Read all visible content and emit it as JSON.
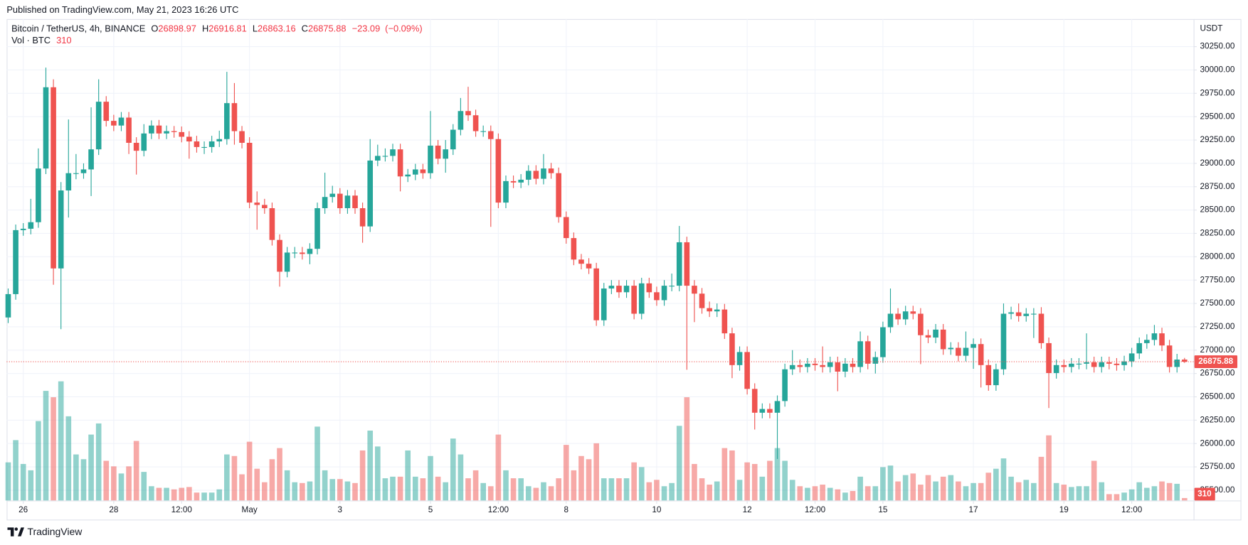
{
  "header": {
    "published": "Published on TradingView.com, May 21, 2023 16:26 UTC"
  },
  "footer": {
    "brand": "TradingView"
  },
  "chart_data": {
    "type": "candlestick",
    "title": "Bitcoin / TetherUS, 4h, BINANCE",
    "ohlc_labels": [
      "O",
      "H",
      "L",
      "C"
    ],
    "change": {
      "value": -23.09,
      "label": "−23.09"
    },
    "change_percent": {
      "value": -0.09,
      "label": "(−0.09%)"
    },
    "volume_label": "Vol · BTC",
    "currency": "USDT",
    "up_color": "#26a69a",
    "down_color": "#ef5350",
    "grid": true,
    "x": [
      "2023-04-25T16:00Z",
      "2023-04-25T20:00Z",
      "2023-04-26T00:00Z",
      "2023-04-26T04:00Z",
      "2023-04-26T08:00Z",
      "2023-04-26T12:00Z",
      "2023-04-26T16:00Z",
      "2023-04-26T20:00Z",
      "2023-04-27T00:00Z",
      "2023-04-27T04:00Z",
      "2023-04-27T08:00Z",
      "2023-04-27T12:00Z",
      "2023-04-27T16:00Z",
      "2023-04-27T20:00Z",
      "2023-04-28T00:00Z",
      "2023-04-28T04:00Z",
      "2023-04-28T08:00Z",
      "2023-04-28T12:00Z",
      "2023-04-28T16:00Z",
      "2023-04-28T20:00Z",
      "2023-04-29T00:00Z",
      "2023-04-29T04:00Z",
      "2023-04-29T08:00Z",
      "2023-04-29T12:00Z",
      "2023-04-29T16:00Z",
      "2023-04-29T20:00Z",
      "2023-04-30T00:00Z",
      "2023-04-30T04:00Z",
      "2023-04-30T08:00Z",
      "2023-04-30T12:00Z",
      "2023-04-30T16:00Z",
      "2023-04-30T20:00Z",
      "2023-05-01T00:00Z",
      "2023-05-01T04:00Z",
      "2023-05-01T08:00Z",
      "2023-05-01T12:00Z",
      "2023-05-01T16:00Z",
      "2023-05-01T20:00Z",
      "2023-05-02T00:00Z",
      "2023-05-02T04:00Z",
      "2023-05-02T08:00Z",
      "2023-05-02T12:00Z",
      "2023-05-02T16:00Z",
      "2023-05-02T20:00Z",
      "2023-05-03T00:00Z",
      "2023-05-03T04:00Z",
      "2023-05-03T08:00Z",
      "2023-05-03T12:00Z",
      "2023-05-03T16:00Z",
      "2023-05-03T20:00Z",
      "2023-05-04T00:00Z",
      "2023-05-04T04:00Z",
      "2023-05-04T08:00Z",
      "2023-05-04T12:00Z",
      "2023-05-04T16:00Z",
      "2023-05-04T20:00Z",
      "2023-05-05T00:00Z",
      "2023-05-05T04:00Z",
      "2023-05-05T08:00Z",
      "2023-05-05T12:00Z",
      "2023-05-05T16:00Z",
      "2023-05-05T20:00Z",
      "2023-05-06T00:00Z",
      "2023-05-06T04:00Z",
      "2023-05-06T08:00Z",
      "2023-05-06T12:00Z",
      "2023-05-06T16:00Z",
      "2023-05-06T20:00Z",
      "2023-05-07T00:00Z",
      "2023-05-07T04:00Z",
      "2023-05-07T08:00Z",
      "2023-05-07T12:00Z",
      "2023-05-07T16:00Z",
      "2023-05-07T20:00Z",
      "2023-05-08T00:00Z",
      "2023-05-08T04:00Z",
      "2023-05-08T08:00Z",
      "2023-05-08T12:00Z",
      "2023-05-08T16:00Z",
      "2023-05-08T20:00Z",
      "2023-05-09T00:00Z",
      "2023-05-09T04:00Z",
      "2023-05-09T08:00Z",
      "2023-05-09T12:00Z",
      "2023-05-09T16:00Z",
      "2023-05-09T20:00Z",
      "2023-05-10T00:00Z",
      "2023-05-10T04:00Z",
      "2023-05-10T08:00Z",
      "2023-05-10T12:00Z",
      "2023-05-10T16:00Z",
      "2023-05-10T20:00Z",
      "2023-05-11T00:00Z",
      "2023-05-11T04:00Z",
      "2023-05-11T08:00Z",
      "2023-05-11T12:00Z",
      "2023-05-11T16:00Z",
      "2023-05-11T20:00Z",
      "2023-05-12T00:00Z",
      "2023-05-12T04:00Z",
      "2023-05-12T08:00Z",
      "2023-05-12T12:00Z",
      "2023-05-12T16:00Z",
      "2023-05-12T20:00Z",
      "2023-05-13T00:00Z",
      "2023-05-13T04:00Z",
      "2023-05-13T08:00Z",
      "2023-05-13T12:00Z",
      "2023-05-13T16:00Z",
      "2023-05-13T20:00Z",
      "2023-05-14T00:00Z",
      "2023-05-14T04:00Z",
      "2023-05-14T08:00Z",
      "2023-05-14T12:00Z",
      "2023-05-14T16:00Z",
      "2023-05-14T20:00Z",
      "2023-05-15T00:00Z",
      "2023-05-15T04:00Z",
      "2023-05-15T08:00Z",
      "2023-05-15T12:00Z",
      "2023-05-15T16:00Z",
      "2023-05-15T20:00Z",
      "2023-05-16T00:00Z",
      "2023-05-16T04:00Z",
      "2023-05-16T08:00Z",
      "2023-05-16T12:00Z",
      "2023-05-16T16:00Z",
      "2023-05-16T20:00Z",
      "2023-05-17T00:00Z",
      "2023-05-17T04:00Z",
      "2023-05-17T08:00Z",
      "2023-05-17T12:00Z",
      "2023-05-17T16:00Z",
      "2023-05-17T20:00Z",
      "2023-05-18T00:00Z",
      "2023-05-18T04:00Z",
      "2023-05-18T08:00Z",
      "2023-05-18T12:00Z",
      "2023-05-18T16:00Z",
      "2023-05-18T20:00Z",
      "2023-05-19T00:00Z",
      "2023-05-19T04:00Z",
      "2023-05-19T08:00Z",
      "2023-05-19T12:00Z",
      "2023-05-19T16:00Z",
      "2023-05-19T20:00Z",
      "2023-05-20T00:00Z",
      "2023-05-20T04:00Z",
      "2023-05-20T08:00Z",
      "2023-05-20T12:00Z",
      "2023-05-20T16:00Z",
      "2023-05-20T20:00Z",
      "2023-05-21T00:00Z",
      "2023-05-21T04:00Z",
      "2023-05-21T08:00Z",
      "2023-05-21T12:00Z",
      "2023-05-21T16:00Z"
    ],
    "open": [
      27350,
      27600,
      28285,
      28300,
      28370,
      28945,
      29815,
      27875,
      28710,
      28895,
      28895,
      28935,
      29150,
      29660,
      29455,
      29405,
      29490,
      29220,
      29135,
      29320,
      29405,
      29320,
      29345,
      29335,
      29285,
      29235,
      29175,
      29175,
      29235,
      29260,
      29645,
      29345,
      29220,
      28580,
      28555,
      28520,
      28180,
      27840,
      28045,
      28045,
      28030,
      28085,
      28520,
      28640,
      28675,
      28520,
      28655,
      28520,
      28325,
      29030,
      29080,
      29080,
      29150,
      28860,
      28880,
      28935,
      28895,
      29190,
      29050,
      29150,
      29360,
      29560,
      29515,
      29345,
      29345,
      29260,
      28580,
      28810,
      28795,
      28825,
      28920,
      28835,
      28945,
      28895,
      28425,
      28200,
      27970,
      27925,
      27875,
      27320,
      27660,
      27690,
      27620,
      27690,
      27390,
      27715,
      27620,
      27535,
      27690,
      27690,
      28155,
      27690,
      27605,
      27450,
      27415,
      27435,
      27180,
      26840,
      26980,
      26585,
      26330,
      26370,
      26330,
      26455,
      26795,
      26840,
      26820,
      26855,
      26840,
      26820,
      26870,
      26770,
      26855,
      26820,
      27095,
      26855,
      26925,
      27245,
      27390,
      27330,
      27415,
      27390,
      27160,
      27135,
      27220,
      27010,
      27025,
      26940,
      27025,
      27065,
      26840,
      26625,
      26795,
      27390,
      27405,
      27365,
      27390,
      27390,
      27075,
      26755,
      26840,
      26820,
      26855,
      26855,
      26870,
      26820,
      26870,
      26855,
      26840,
      26880,
      26965,
      27075,
      27110,
      27180,
      27050,
      26820,
      26898.97
    ],
    "high": [
      27660,
      28345,
      28360,
      28620,
      29160,
      30025,
      29900,
      28800,
      29470,
      29100,
      29000,
      29600,
      29900,
      29720,
      29520,
      29550,
      29550,
      29280,
      29420,
      29460,
      29465,
      29405,
      29400,
      29395,
      29345,
      29295,
      29235,
      29295,
      29350,
      29980,
      29860,
      29400,
      29280,
      28700,
      28620,
      28580,
      28240,
      28105,
      28105,
      28105,
      28145,
      28580,
      28900,
      28760,
      28735,
      28715,
      28715,
      28580,
      29260,
      29200,
      29160,
      29210,
      29210,
      28940,
      28995,
      28995,
      29560,
      29250,
      29250,
      29420,
      29700,
      29820,
      29575,
      29405,
      29405,
      29320,
      28870,
      28870,
      28885,
      28980,
      28980,
      29100,
      29005,
      28955,
      28485,
      28260,
      28030,
      27985,
      27935,
      27720,
      27750,
      27750,
      27750,
      27750,
      27775,
      27775,
      27680,
      27750,
      27820,
      28330,
      28215,
      27750,
      27665,
      27520,
      27500,
      27495,
      27240,
      27040,
      27040,
      26645,
      26430,
      26430,
      26515,
      26855,
      27000,
      26900,
      26915,
      26915,
      27040,
      26930,
      26930,
      26915,
      26915,
      27200,
      27155,
      26985,
      27305,
      27660,
      27450,
      27475,
      27475,
      27450,
      27220,
      27280,
      27280,
      27085,
      27085,
      27200,
      27125,
      27125,
      26900,
      26855,
      27500,
      27465,
      27500,
      27450,
      27450,
      27460,
      27135,
      26900,
      26900,
      26915,
      26915,
      27180,
      26930,
      26930,
      26930,
      26915,
      26940,
      27025,
      27135,
      27170,
      27270,
      27240,
      27110,
      26960,
      26916.81
    ],
    "low": [
      27290,
      27540,
      28225,
      28240,
      28310,
      28885,
      27700,
      27225,
      28420,
      28830,
      28835,
      28650,
      29090,
      29395,
      29345,
      29345,
      29100,
      28880,
      29075,
      29260,
      29260,
      29260,
      29275,
      29225,
      29050,
      29115,
      29100,
      29115,
      29175,
      29200,
      29200,
      29160,
      28520,
      28290,
      28460,
      28120,
      27680,
      27780,
      27985,
      27970,
      27920,
      28025,
      28460,
      28580,
      28460,
      28460,
      28460,
      28150,
      28265,
      28970,
      29020,
      29020,
      28700,
      28800,
      28820,
      28835,
      28835,
      28990,
      28900,
      29090,
      29300,
      29455,
      29285,
      29285,
      28320,
      28520,
      28520,
      28735,
      28735,
      28765,
      28775,
      28775,
      28835,
      28365,
      28140,
      27910,
      27865,
      27815,
      27260,
      27260,
      27600,
      27560,
      27560,
      27330,
      27330,
      27560,
      27475,
      27475,
      27630,
      27630,
      26790,
      27300,
      27390,
      27355,
      27355,
      27120,
      26700,
      26780,
      26525,
      26150,
      26270,
      26270,
      25835,
      26395,
      26735,
      26760,
      26760,
      26780,
      26760,
      26760,
      26560,
      26710,
      26760,
      26760,
      26795,
      26750,
      26865,
      27185,
      27270,
      27270,
      27330,
      26850,
      27075,
      27075,
      26950,
      26950,
      26880,
      26880,
      26800,
      26600,
      26565,
      26565,
      26735,
      27330,
      27305,
      27305,
      27130,
      27015,
      26380,
      26695,
      26760,
      26760,
      26795,
      26795,
      26760,
      26760,
      26795,
      26780,
      26780,
      26820,
      26905,
      27015,
      27050,
      26990,
      26760,
      26760,
      26863.16
    ],
    "close": [
      27600,
      28285,
      28300,
      28370,
      28945,
      29815,
      27875,
      28710,
      28895,
      28895,
      28935,
      29150,
      29660,
      29455,
      29405,
      29490,
      29220,
      29135,
      29320,
      29405,
      29320,
      29345,
      29335,
      29285,
      29235,
      29175,
      29175,
      29235,
      29260,
      29645,
      29345,
      29220,
      28580,
      28555,
      28520,
      28180,
      27840,
      28045,
      28045,
      28030,
      28085,
      28520,
      28640,
      28675,
      28520,
      28655,
      28520,
      28325,
      29030,
      29080,
      29080,
      29150,
      28860,
      28880,
      28935,
      28895,
      29190,
      29050,
      29150,
      29360,
      29560,
      29515,
      29345,
      29345,
      29260,
      28580,
      28810,
      28795,
      28825,
      28920,
      28835,
      28945,
      28895,
      28425,
      28200,
      27970,
      27925,
      27875,
      27320,
      27660,
      27690,
      27620,
      27690,
      27390,
      27715,
      27620,
      27535,
      27690,
      27690,
      28155,
      27690,
      27605,
      27450,
      27415,
      27435,
      27180,
      26840,
      26980,
      26585,
      26330,
      26370,
      26330,
      26455,
      26795,
      26840,
      26820,
      26855,
      26840,
      26820,
      26870,
      26770,
      26855,
      26820,
      27095,
      26855,
      26925,
      27245,
      27390,
      27330,
      27415,
      27390,
      27160,
      27135,
      27220,
      27010,
      27025,
      26940,
      27025,
      27065,
      26840,
      26625,
      26795,
      27390,
      27405,
      27365,
      27390,
      27390,
      27075,
      26755,
      26840,
      26820,
      26855,
      26855,
      26870,
      26820,
      26870,
      26855,
      26840,
      26880,
      26965,
      27075,
      27110,
      27180,
      27050,
      26820,
      26898.97,
      26875.88
    ],
    "volume": [
      4800,
      7600,
      4600,
      3800,
      10000,
      13800,
      13000,
      15000,
      10600,
      5800,
      5200,
      8300,
      9700,
      5000,
      4300,
      3400,
      4300,
      7500,
      3600,
      1800,
      1600,
      1600,
      1400,
      1600,
      1700,
      1000,
      1000,
      1000,
      1400,
      5800,
      5600,
      3300,
      7400,
      4000,
      2300,
      5200,
      6600,
      3800,
      2300,
      2200,
      2400,
      9300,
      3800,
      2700,
      2700,
      2400,
      2200,
      6300,
      8800,
      6800,
      2800,
      3000,
      3000,
      6300,
      3000,
      2800,
      5600,
      3000,
      2300,
      7800,
      5800,
      2800,
      3800,
      2200,
      1800,
      8300,
      3800,
      2800,
      2800,
      1800,
      1600,
      2300,
      1800,
      2800,
      7000,
      3800,
      5600,
      5200,
      7200,
      2800,
      2800,
      2800,
      2800,
      4800,
      4200,
      2300,
      2600,
      1800,
      2200,
      9400,
      13000,
      4600,
      2800,
      2000,
      2400,
      6600,
      6300,
      2600,
      4800,
      4600,
      3000,
      5000,
      6600,
      5000,
      2600,
      1800,
      1600,
      1800,
      2000,
      1600,
      1400,
      1000,
      1200,
      3000,
      1800,
      1800,
      4200,
      4400,
      2400,
      3200,
      3400,
      2000,
      3200,
      2400,
      3000,
      3200,
      2400,
      1800,
      2200,
      2200,
      3500,
      4000,
      5300,
      3000,
      2300,
      2600,
      2200,
      5500,
      8200,
      2200,
      2000,
      1700,
      1800,
      1800,
      5000,
      2300,
      800,
      800,
      1000,
      1400,
      2300,
      1600,
      1800,
      2400,
      2200,
      2100,
      310
    ],
    "xlim": [
      "2023-04-25T15:12Z",
      "2023-05-21T20:48Z"
    ],
    "xticks": [
      {
        "value": "2023-04-26T00:00Z",
        "label": "26"
      },
      {
        "value": "2023-04-28T00:00Z",
        "label": "28"
      },
      {
        "value": "2023-04-29T12:00Z",
        "label": "12:00"
      },
      {
        "value": "2023-05-01T00:00Z",
        "label": "May"
      },
      {
        "value": "2023-05-03T00:00Z",
        "label": "3"
      },
      {
        "value": "2023-05-05T00:00Z",
        "label": "5"
      },
      {
        "value": "2023-05-06T12:00Z",
        "label": "12:00"
      },
      {
        "value": "2023-05-08T00:00Z",
        "label": "8"
      },
      {
        "value": "2023-05-10T00:00Z",
        "label": "10"
      },
      {
        "value": "2023-05-12T00:00Z",
        "label": "12"
      },
      {
        "value": "2023-05-13T12:00Z",
        "label": "12:00"
      },
      {
        "value": "2023-05-15T00:00Z",
        "label": "15"
      },
      {
        "value": "2023-05-17T00:00Z",
        "label": "17"
      },
      {
        "value": "2023-05-19T00:00Z",
        "label": "19"
      },
      {
        "value": "2023-05-20T12:00Z",
        "label": "12:00"
      }
    ],
    "ylim": [
      25390,
      30545
    ],
    "yticks": [
      {
        "value": 25500,
        "label": "25500.00"
      },
      {
        "value": 25750,
        "label": "25750.00"
      },
      {
        "value": 26000,
        "label": "26000.00"
      },
      {
        "value": 26250,
        "label": "26250.00"
      },
      {
        "value": 26500,
        "label": "26500.00"
      },
      {
        "value": 26750,
        "label": "26750.00"
      },
      {
        "value": 27000,
        "label": "27000.00"
      },
      {
        "value": 27250,
        "label": "27250.00"
      },
      {
        "value": 27500,
        "label": "27500.00"
      },
      {
        "value": 27750,
        "label": "27750.00"
      },
      {
        "value": 28000,
        "label": "28000.00"
      },
      {
        "value": 28250,
        "label": "28250.00"
      },
      {
        "value": 28500,
        "label": "28500.00"
      },
      {
        "value": 28750,
        "label": "28750.00"
      },
      {
        "value": 29000,
        "label": "29000.00"
      },
      {
        "value": 29250,
        "label": "29250.00"
      },
      {
        "value": 29500,
        "label": "29500.00"
      },
      {
        "value": 29750,
        "label": "29750.00"
      },
      {
        "value": 30000,
        "label": "30000.00"
      },
      {
        "value": 30250,
        "label": "30250.00"
      }
    ],
    "y2lim": [
      0,
      60600
    ]
  }
}
